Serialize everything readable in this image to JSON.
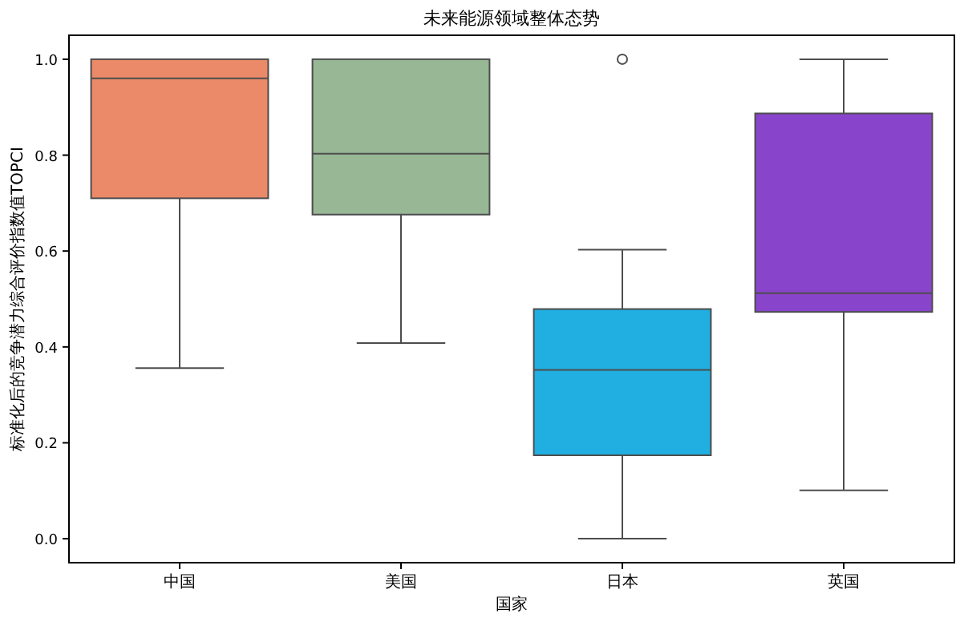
{
  "chart_data": {
    "type": "box",
    "title": "未来能源领域整体态势",
    "xlabel": "国家",
    "ylabel": "标准化后的竞争潜力综合评价指数值TOPCI",
    "categories": [
      "中国",
      "美国",
      "日本",
      "英国"
    ],
    "colors": [
      "#eb8a68",
      "#97b795",
      "#21aee0",
      "#8944cc"
    ],
    "boxes": [
      {
        "low": 0.356,
        "q1": 0.71,
        "median": 0.96,
        "q3": 1.0,
        "high": 1.0
      },
      {
        "low": 0.408,
        "q1": 0.676,
        "median": 0.803,
        "q3": 1.0,
        "high": 1.0
      },
      {
        "low": 0.0,
        "q1": 0.174,
        "median": 0.352,
        "q3": 0.479,
        "high": 0.603,
        "outliers": [
          1.0
        ]
      },
      {
        "low": 0.101,
        "q1": 0.473,
        "median": 0.512,
        "q3": 0.887,
        "high": 1.0
      }
    ],
    "ylim": [
      -0.05,
      1.05
    ],
    "yticks": [
      {
        "value": 0,
        "label": "0.0"
      },
      0.2,
      0.4,
      0.6,
      0.8,
      {
        "value": 1,
        "label": "1.0"
      }
    ]
  }
}
